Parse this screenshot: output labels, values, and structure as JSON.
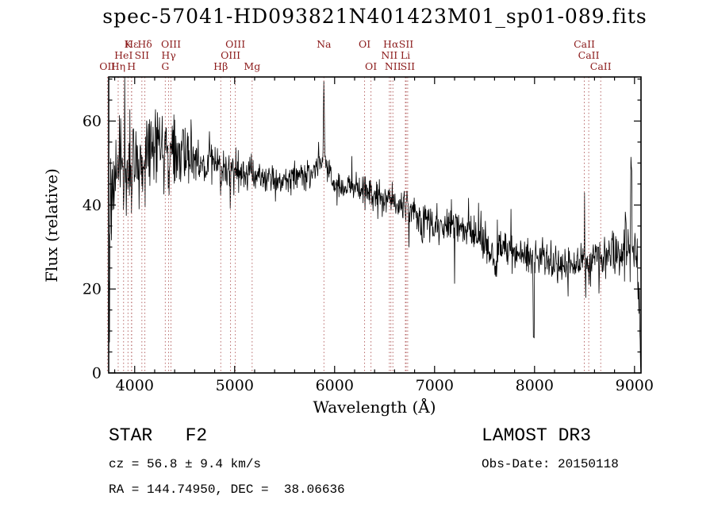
{
  "colors": {
    "background": "#ffffff",
    "line": "#000000",
    "frame": "#000000",
    "text": "#000000",
    "marker_line": "#b05a5a",
    "marker_label": "#8b1a1a"
  },
  "chart_data": {
    "type": "line",
    "title": "spec-57041-HD093821N401423M01_sp01-089.fits",
    "xlabel": "Wavelength (Å)",
    "ylabel": "Flux (relative)",
    "xlim": [
      3740,
      9065
    ],
    "ylim": [
      0,
      70.5
    ],
    "xticks": [
      4000,
      5000,
      6000,
      7000,
      8000,
      9000
    ],
    "yticks": [
      0,
      20,
      40,
      60
    ],
    "x_minor_step": 200,
    "y_minor_step": 5,
    "grid": false,
    "noise_seed": 57041,
    "continuum_anchors": [
      [
        3738,
        0
      ],
      [
        3748,
        25
      ],
      [
        3760,
        42
      ],
      [
        3800,
        46
      ],
      [
        3850,
        47
      ],
      [
        3900,
        50
      ],
      [
        3950,
        48
      ],
      [
        4000,
        51
      ],
      [
        4100,
        52
      ],
      [
        4200,
        54
      ],
      [
        4300,
        52
      ],
      [
        4400,
        54
      ],
      [
        4500,
        52
      ],
      [
        4600,
        51
      ],
      [
        4700,
        50
      ],
      [
        4800,
        50
      ],
      [
        4900,
        48
      ],
      [
        5000,
        48
      ],
      [
        5100,
        47
      ],
      [
        5200,
        47
      ],
      [
        5300,
        46
      ],
      [
        5400,
        46
      ],
      [
        5500,
        46
      ],
      [
        5600,
        47
      ],
      [
        5700,
        47
      ],
      [
        5800,
        48
      ],
      [
        5860,
        50
      ],
      [
        5895,
        51
      ],
      [
        5930,
        48
      ],
      [
        6000,
        45
      ],
      [
        6100,
        44
      ],
      [
        6200,
        44
      ],
      [
        6300,
        43
      ],
      [
        6400,
        42
      ],
      [
        6500,
        42
      ],
      [
        6600,
        41
      ],
      [
        6700,
        40
      ],
      [
        6800,
        38
      ],
      [
        6900,
        37
      ],
      [
        7000,
        35
      ],
      [
        7100,
        35
      ],
      [
        7200,
        35
      ],
      [
        7300,
        34
      ],
      [
        7400,
        33
      ],
      [
        7500,
        31
      ],
      [
        7550,
        30
      ],
      [
        7600,
        29
      ],
      [
        7700,
        30
      ],
      [
        7800,
        29
      ],
      [
        7900,
        28
      ],
      [
        8000,
        28
      ],
      [
        8100,
        27
      ],
      [
        8200,
        27
      ],
      [
        8300,
        26
      ],
      [
        8400,
        26
      ],
      [
        8500,
        27
      ],
      [
        8600,
        27
      ],
      [
        8700,
        28
      ],
      [
        8800,
        28
      ],
      [
        8900,
        29
      ],
      [
        8950,
        30
      ],
      [
        9000,
        29
      ],
      [
        9030,
        27
      ],
      [
        9052,
        12
      ],
      [
        9065,
        2
      ]
    ],
    "noise_profile": [
      [
        3740,
        6.5
      ],
      [
        3900,
        5.5
      ],
      [
        4100,
        5
      ],
      [
        4300,
        4.5
      ],
      [
        4500,
        3.5
      ],
      [
        4700,
        3
      ],
      [
        4900,
        2.5
      ],
      [
        5200,
        2
      ],
      [
        5600,
        1.8
      ],
      [
        6000,
        1.8
      ],
      [
        6500,
        1.8
      ],
      [
        7000,
        2
      ],
      [
        7500,
        2.2
      ],
      [
        8000,
        2.4
      ],
      [
        8500,
        2.4
      ],
      [
        8800,
        2.8
      ],
      [
        9000,
        3.5
      ],
      [
        9065,
        5
      ]
    ],
    "features": [
      {
        "x": 3933,
        "amp": -8,
        "w": 4
      },
      {
        "x": 3968,
        "amp": -8,
        "w": 4
      },
      {
        "x": 4102,
        "amp": -7,
        "w": 4
      },
      {
        "x": 4340,
        "amp": -6,
        "w": 4
      },
      {
        "x": 4861,
        "amp": -7,
        "w": 4
      },
      {
        "x": 5893,
        "amp": 17,
        "w": 5
      },
      {
        "x": 6563,
        "amp": -5,
        "w": 4
      },
      {
        "x": 6870,
        "amp": -4,
        "w": 9
      },
      {
        "x": 7605,
        "amp": -4,
        "w": 10
      },
      {
        "x": 7990,
        "amp": -24,
        "w": 4
      },
      {
        "x": 8228,
        "amp": -3,
        "w": 6
      },
      {
        "x": 8498,
        "amp": -3,
        "w": 3
      },
      {
        "x": 8542,
        "amp": -4,
        "w": 3
      },
      {
        "x": 8662,
        "amp": -4,
        "w": 3
      },
      {
        "x": 8968,
        "amp": 26,
        "w": 4
      }
    ],
    "spectral_lines": [
      {
        "label": "OII",
        "wavelength": 3727,
        "row": 3
      },
      {
        "label": "Hη",
        "wavelength": 3835,
        "row": 3
      },
      {
        "label": "HeI",
        "wavelength": 3889,
        "row": 2
      },
      {
        "label": "K",
        "wavelength": 3933,
        "row": 1
      },
      {
        "label": "H",
        "wavelength": 3968,
        "row": 3
      },
      {
        "label": "Hε",
        "wavelength": 3970,
        "row": 1
      },
      {
        "label": "SII",
        "wavelength": 4072,
        "row": 2
      },
      {
        "label": "Hδ",
        "wavelength": 4102,
        "row": 1
      },
      {
        "label": "G",
        "wavelength": 4306,
        "row": 3
      },
      {
        "label": "Hγ",
        "wavelength": 4340,
        "row": 2
      },
      {
        "label": "OIII",
        "wavelength": 4363,
        "row": 1
      },
      {
        "label": "Hβ",
        "wavelength": 4861,
        "row": 3
      },
      {
        "label": "OIII",
        "wavelength": 4959,
        "row": 2
      },
      {
        "label": "OIII",
        "wavelength": 5007,
        "row": 1
      },
      {
        "label": "Mg",
        "wavelength": 5175,
        "row": 3
      },
      {
        "label": "Na",
        "wavelength": 5893,
        "row": 1
      },
      {
        "label": "OI",
        "wavelength": 6300,
        "row": 1
      },
      {
        "label": "OI",
        "wavelength": 6364,
        "row": 3
      },
      {
        "label": "NII",
        "wavelength": 6548,
        "row": 2
      },
      {
        "label": "Hα",
        "wavelength": 6563,
        "row": 1
      },
      {
        "label": "NII",
        "wavelength": 6583,
        "row": 3
      },
      {
        "label": "Li",
        "wavelength": 6708,
        "row": 2
      },
      {
        "label": "SII",
        "wavelength": 6716,
        "row": 1
      },
      {
        "label": "SII",
        "wavelength": 6731,
        "row": 3
      },
      {
        "label": "CaII",
        "wavelength": 8498,
        "row": 1
      },
      {
        "label": "CaII",
        "wavelength": 8542,
        "row": 2
      },
      {
        "label": "CaII",
        "wavelength": 8662,
        "row": 3
      }
    ]
  },
  "annotations": {
    "class_line": "STAR   F2",
    "survey": "LAMOST DR3",
    "cz_line": "cz = 56.8 ± 9.4 km/s",
    "obs_date_line": "Obs-Date: 20150118",
    "radec_line": "RA = 144.74950, DEC =  38.06636"
  }
}
